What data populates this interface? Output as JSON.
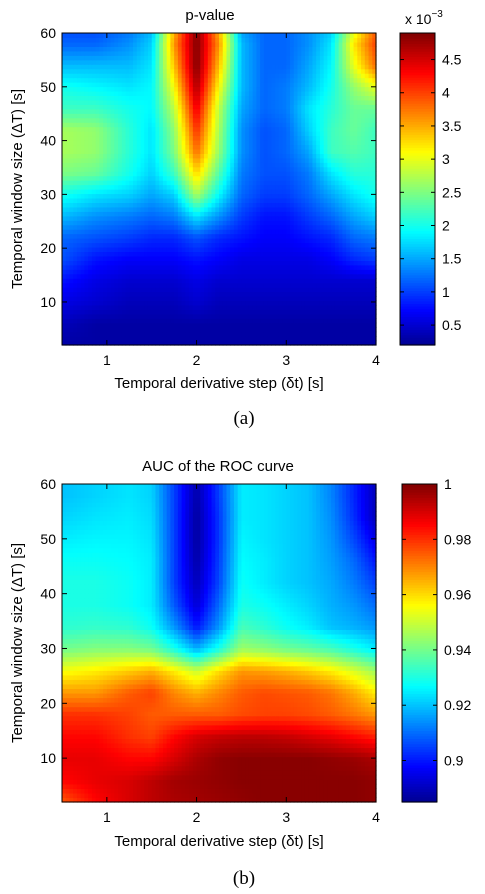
{
  "colormap": [
    "#00008f",
    "#0000ff",
    "#00ffff",
    "#ffff00",
    "#ff0000",
    "#800000"
  ],
  "chart_data": [
    {
      "id": "a",
      "type": "heatmap",
      "caption": "(a)",
      "title": "p-value",
      "xlabel": "Temporal derivative step (δt) [s]",
      "ylabel": "Temporal window size (ΔT) [s]",
      "xlim": [
        0.5,
        4
      ],
      "ylim": [
        2,
        60
      ],
      "xticks": [
        1,
        2,
        3,
        4
      ],
      "yticks": [
        10,
        20,
        30,
        40,
        50,
        60
      ],
      "colorbar": {
        "range": [
          0.0002,
          0.0049
        ],
        "ticks": [
          0.0005,
          0.001,
          0.0015,
          0.002,
          0.0025,
          0.003,
          0.0035,
          0.004,
          0.0045
        ],
        "tick_labels": [
          "0.5",
          "1",
          "1.5",
          "2",
          "2.5",
          "3",
          "3.5",
          "4",
          "4.5"
        ],
        "exponent_label": "x 10",
        "exponent": "−3"
      },
      "x": [
        0.5,
        0.875,
        1.25,
        1.5,
        1.75,
        2.0,
        2.25,
        2.5,
        2.75,
        3.0,
        3.25,
        3.5,
        3.75,
        4.0
      ],
      "y": [
        2,
        6,
        10,
        14,
        18,
        22,
        26,
        30,
        34,
        38,
        42,
        46,
        50,
        54,
        58,
        60
      ],
      "z": [
        [
          0.0003,
          0.0003,
          0.0003,
          0.0003,
          0.0003,
          0.0003,
          0.0003,
          0.0003,
          0.0003,
          0.0003,
          0.0003,
          0.0003,
          0.0003,
          0.0003
        ],
        [
          0.0004,
          0.0003,
          0.0003,
          0.0003,
          0.0003,
          0.0003,
          0.0003,
          0.0003,
          0.0003,
          0.0003,
          0.0003,
          0.0003,
          0.0003,
          0.0003
        ],
        [
          0.0006,
          0.0005,
          0.0004,
          0.0004,
          0.0004,
          0.0005,
          0.0004,
          0.0004,
          0.0004,
          0.0004,
          0.0004,
          0.0004,
          0.0004,
          0.0004
        ],
        [
          0.0008,
          0.0006,
          0.0005,
          0.0005,
          0.0005,
          0.0006,
          0.0005,
          0.0005,
          0.0005,
          0.0005,
          0.0005,
          0.0005,
          0.0005,
          0.0005
        ],
        [
          0.0011,
          0.0008,
          0.0007,
          0.0007,
          0.0007,
          0.0008,
          0.0007,
          0.0006,
          0.0006,
          0.0006,
          0.0006,
          0.0007,
          0.0009,
          0.001
        ],
        [
          0.0012,
          0.0011,
          0.001,
          0.0009,
          0.0009,
          0.0011,
          0.0009,
          0.0008,
          0.0007,
          0.0007,
          0.0008,
          0.0009,
          0.0012,
          0.0013
        ],
        [
          0.0016,
          0.0014,
          0.0013,
          0.0012,
          0.0013,
          0.0018,
          0.0014,
          0.001,
          0.0008,
          0.0008,
          0.001,
          0.0012,
          0.0015,
          0.0017
        ],
        [
          0.002,
          0.0018,
          0.0017,
          0.0015,
          0.0017,
          0.0027,
          0.0019,
          0.0012,
          0.001,
          0.001,
          0.0012,
          0.0015,
          0.0018,
          0.002
        ],
        [
          0.0025,
          0.0024,
          0.002,
          0.0017,
          0.0022,
          0.0033,
          0.0023,
          0.0013,
          0.0011,
          0.0011,
          0.0013,
          0.0018,
          0.0021,
          0.0021
        ],
        [
          0.0027,
          0.0026,
          0.0021,
          0.0018,
          0.0025,
          0.0038,
          0.0026,
          0.0014,
          0.0011,
          0.0012,
          0.0015,
          0.0022,
          0.0023,
          0.0022
        ],
        [
          0.0027,
          0.0026,
          0.0021,
          0.0018,
          0.0026,
          0.0041,
          0.0027,
          0.0014,
          0.0011,
          0.0012,
          0.0017,
          0.0022,
          0.0024,
          0.0022
        ],
        [
          0.0022,
          0.0022,
          0.002,
          0.0019,
          0.0028,
          0.0044,
          0.0028,
          0.0015,
          0.0012,
          0.0013,
          0.0018,
          0.0021,
          0.0024,
          0.0024
        ],
        [
          0.002,
          0.0019,
          0.0018,
          0.0019,
          0.0031,
          0.0047,
          0.0031,
          0.0016,
          0.0012,
          0.0013,
          0.0016,
          0.002,
          0.0026,
          0.003
        ],
        [
          0.0016,
          0.0016,
          0.0016,
          0.0018,
          0.0034,
          0.0049,
          0.0034,
          0.0016,
          0.0012,
          0.0012,
          0.0015,
          0.0019,
          0.003,
          0.0038
        ],
        [
          0.0012,
          0.0012,
          0.0014,
          0.0017,
          0.0036,
          0.0049,
          0.0036,
          0.0016,
          0.0012,
          0.0012,
          0.0014,
          0.0018,
          0.0032,
          0.004
        ],
        [
          0.0011,
          0.0011,
          0.0013,
          0.0016,
          0.0035,
          0.0049,
          0.0035,
          0.0015,
          0.0012,
          0.0012,
          0.0014,
          0.0017,
          0.003,
          0.0039
        ]
      ]
    },
    {
      "id": "b",
      "type": "heatmap",
      "caption": "(b)",
      "title": "AUC of the ROC curve",
      "xlabel": "Temporal derivative step (δt) [s]",
      "ylabel": "Temporal window size (ΔT) [s]",
      "xlim": [
        0.5,
        4
      ],
      "ylim": [
        2,
        60
      ],
      "xticks": [
        1,
        2,
        3,
        4
      ],
      "yticks": [
        10,
        20,
        30,
        40,
        50,
        60
      ],
      "colorbar": {
        "range": [
          0.885,
          1.0
        ],
        "ticks": [
          0.9,
          0.92,
          0.94,
          0.96,
          0.98,
          1.0
        ],
        "tick_labels": [
          "0.9",
          "0.92",
          "0.94",
          "0.96",
          "0.98",
          "1"
        ]
      },
      "x": [
        0.5,
        0.875,
        1.25,
        1.5,
        1.75,
        2.0,
        2.25,
        2.5,
        2.75,
        3.0,
        3.25,
        3.5,
        3.75,
        4.0
      ],
      "y": [
        2,
        6,
        10,
        14,
        18,
        22,
        26,
        30,
        34,
        38,
        42,
        46,
        50,
        54,
        58,
        60
      ],
      "z": [
        [
          0.975,
          0.985,
          0.99,
          0.993,
          0.995,
          0.996,
          0.997,
          0.998,
          0.999,
          0.999,
          0.999,
          0.999,
          0.999,
          0.998
        ],
        [
          0.985,
          0.988,
          0.99,
          0.993,
          0.996,
          0.997,
          0.998,
          0.999,
          0.999,
          0.999,
          0.999,
          0.999,
          0.999,
          0.998
        ],
        [
          0.988,
          0.988,
          0.985,
          0.985,
          0.99,
          0.995,
          0.998,
          0.999,
          0.999,
          0.999,
          0.999,
          0.998,
          0.997,
          0.995
        ],
        [
          0.985,
          0.985,
          0.98,
          0.978,
          0.985,
          0.99,
          0.992,
          0.993,
          0.993,
          0.992,
          0.99,
          0.988,
          0.985,
          0.982
        ],
        [
          0.98,
          0.98,
          0.978,
          0.975,
          0.975,
          0.975,
          0.975,
          0.977,
          0.978,
          0.978,
          0.977,
          0.975,
          0.972,
          0.968
        ],
        [
          0.968,
          0.968,
          0.975,
          0.978,
          0.97,
          0.965,
          0.97,
          0.975,
          0.977,
          0.976,
          0.975,
          0.972,
          0.966,
          0.958
        ],
        [
          0.955,
          0.958,
          0.962,
          0.965,
          0.958,
          0.95,
          0.96,
          0.968,
          0.967,
          0.965,
          0.962,
          0.958,
          0.952,
          0.945
        ],
        [
          0.94,
          0.942,
          0.942,
          0.94,
          0.93,
          0.918,
          0.93,
          0.945,
          0.943,
          0.94,
          0.938,
          0.935,
          0.93,
          0.925
        ],
        [
          0.932,
          0.933,
          0.932,
          0.928,
          0.915,
          0.9,
          0.915,
          0.935,
          0.932,
          0.928,
          0.925,
          0.92,
          0.918,
          0.915
        ],
        [
          0.93,
          0.93,
          0.928,
          0.925,
          0.908,
          0.893,
          0.91,
          0.93,
          0.928,
          0.925,
          0.922,
          0.918,
          0.915,
          0.91
        ],
        [
          0.93,
          0.93,
          0.928,
          0.925,
          0.905,
          0.89,
          0.906,
          0.928,
          0.925,
          0.922,
          0.92,
          0.917,
          0.912,
          0.905
        ],
        [
          0.928,
          0.928,
          0.927,
          0.925,
          0.905,
          0.888,
          0.905,
          0.927,
          0.925,
          0.922,
          0.92,
          0.916,
          0.91,
          0.9
        ],
        [
          0.925,
          0.926,
          0.926,
          0.924,
          0.905,
          0.887,
          0.904,
          0.926,
          0.924,
          0.922,
          0.92,
          0.915,
          0.906,
          0.895
        ],
        [
          0.922,
          0.924,
          0.925,
          0.923,
          0.905,
          0.887,
          0.904,
          0.925,
          0.924,
          0.922,
          0.92,
          0.914,
          0.903,
          0.89
        ],
        [
          0.92,
          0.922,
          0.924,
          0.922,
          0.905,
          0.888,
          0.905,
          0.925,
          0.924,
          0.922,
          0.92,
          0.913,
          0.902,
          0.89
        ],
        [
          0.92,
          0.922,
          0.924,
          0.922,
          0.905,
          0.888,
          0.905,
          0.925,
          0.924,
          0.922,
          0.92,
          0.913,
          0.902,
          0.89
        ]
      ]
    }
  ]
}
